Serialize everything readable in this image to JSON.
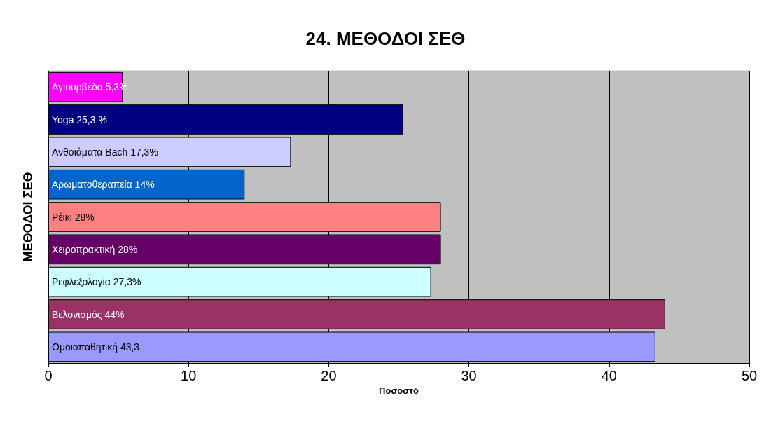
{
  "chart_data": {
    "type": "bar",
    "orientation": "horizontal",
    "title": "24. ΜΕΘΟΔΟΙ ΣΕΘ",
    "xlabel": "Ποσοστό",
    "ylabel": "ΜΕΘΟΔΟΙ ΣΕΘ",
    "categories": [
      "Αγιουρβέδα",
      "Yoga",
      "Ανθοιάματα Bach",
      "Αρωματοθεραπεία",
      "Ρέικι",
      "Χειροπρακτική",
      "Ρεφλεξολογία",
      "Βελονισμός",
      "Ομοιοπαθητική"
    ],
    "values": [
      5.3,
      25.3,
      17.3,
      14,
      28,
      28,
      27.3,
      44,
      43.3
    ],
    "value_labels": [
      "5,3%",
      "25,3 %",
      "17,3%",
      "14%",
      "28%",
      "28%",
      "27,3%",
      "44%",
      "43,3"
    ],
    "colors": [
      "#ff00ff",
      "#000080",
      "#ccccff",
      "#0066cc",
      "#ff8080",
      "#660066",
      "#ccffff",
      "#993366",
      "#9999ff"
    ],
    "xlim": [
      0,
      50
    ],
    "xticks": [
      0,
      10,
      20,
      30,
      40,
      50
    ],
    "grid": "x",
    "tick_labels": "x"
  }
}
